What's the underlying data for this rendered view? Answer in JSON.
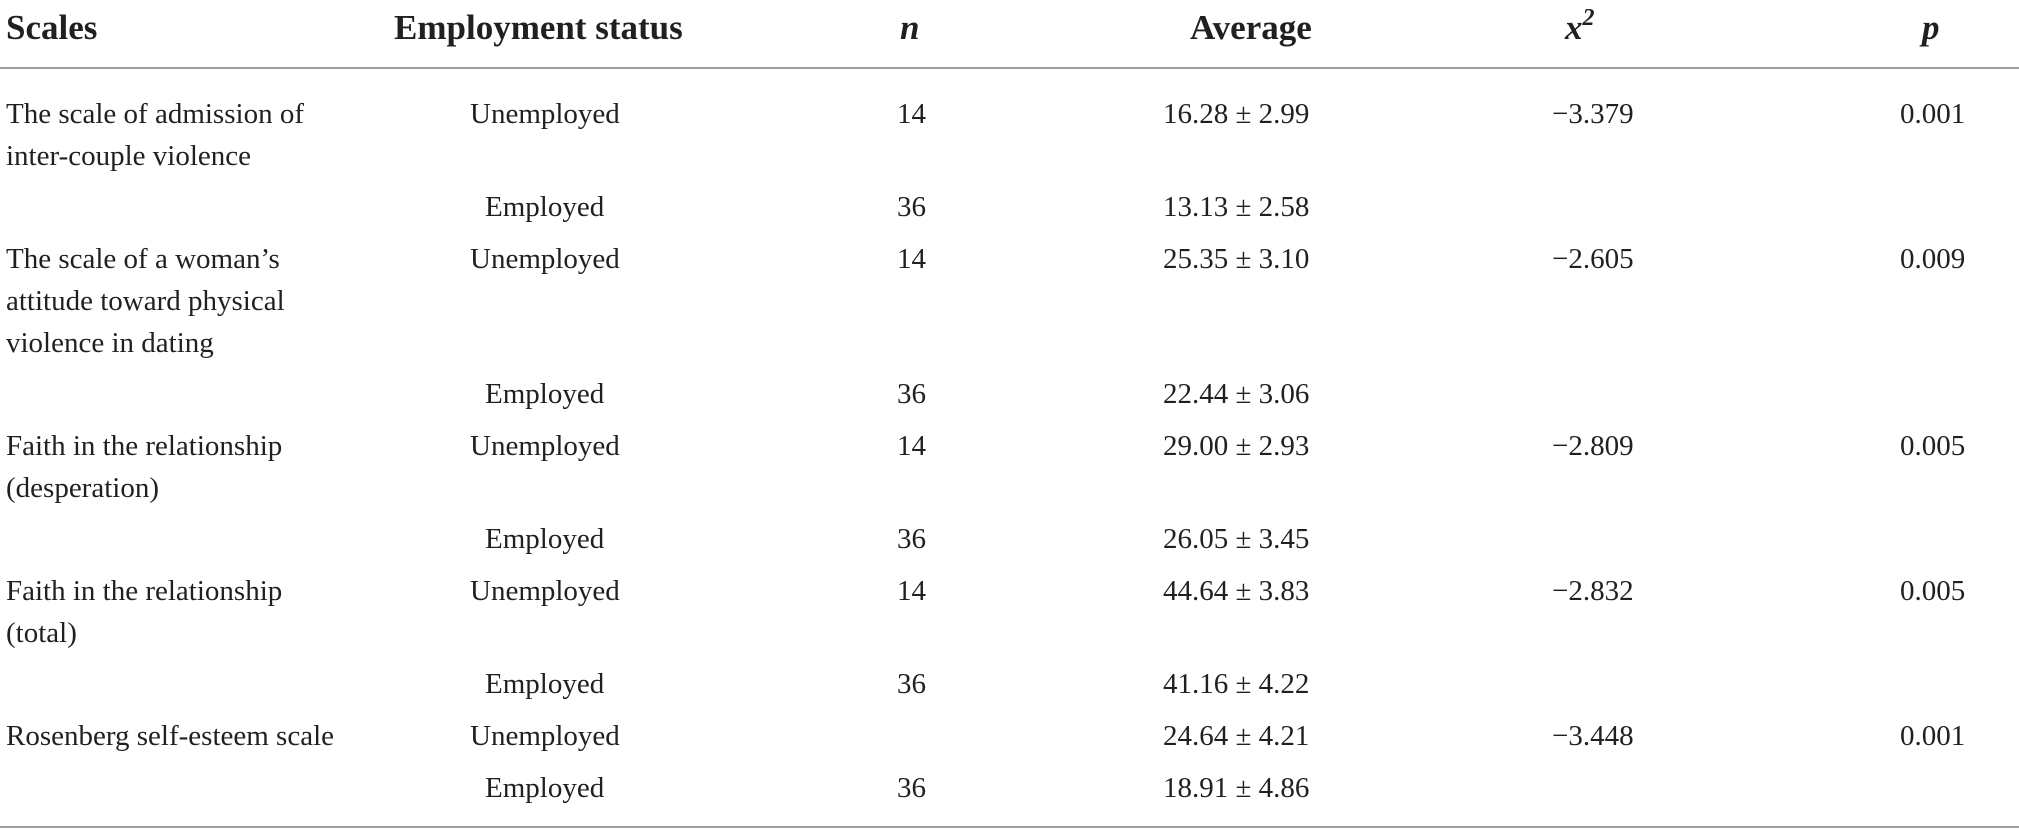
{
  "table": {
    "headers": {
      "scales": "Scales",
      "employment": "Employment status",
      "n": "n",
      "average": "Average",
      "x2_base": "x",
      "x2_sup": "2",
      "p": "p"
    },
    "groups": [
      {
        "scale": "The scale of admission of inter-couple violence",
        "x2": "−3.379",
        "p": "0.001",
        "rows": [
          {
            "status": "Unemployed",
            "n": "14",
            "average": "16.28 ± 2.99"
          },
          {
            "status": "Employed",
            "n": "36",
            "average": "13.13 ± 2.58"
          }
        ]
      },
      {
        "scale": "The scale of a woman’s attitude toward physical violence in dating",
        "x2": "−2.605",
        "p": "0.009",
        "rows": [
          {
            "status": "Unemployed",
            "n": "14",
            "average": "25.35 ± 3.10"
          },
          {
            "status": "Employed",
            "n": "36",
            "average": "22.44 ± 3.06"
          }
        ]
      },
      {
        "scale": "Faith in the relationship (desperation)",
        "x2": "−2.809",
        "p": "0.005",
        "rows": [
          {
            "status": "Unemployed",
            "n": "14",
            "average": "29.00 ± 2.93"
          },
          {
            "status": "Employed",
            "n": "36",
            "average": "26.05 ± 3.45"
          }
        ]
      },
      {
        "scale": "Faith in the relationship (total)",
        "x2": "−2.832",
        "p": "0.005",
        "rows": [
          {
            "status": "Unemployed",
            "n": "14",
            "average": "44.64 ± 3.83"
          },
          {
            "status": "Employed",
            "n": "36",
            "average": "41.16 ± 4.22"
          }
        ]
      },
      {
        "scale": "Rosenberg self-esteem scale",
        "x2": "−3.448",
        "p": "0.001",
        "rows": [
          {
            "status": "Unemployed",
            "n": "",
            "average": "24.64 ± 4.21"
          },
          {
            "status": "Employed",
            "n": "36",
            "average": "18.91 ± 4.86"
          }
        ]
      }
    ]
  }
}
